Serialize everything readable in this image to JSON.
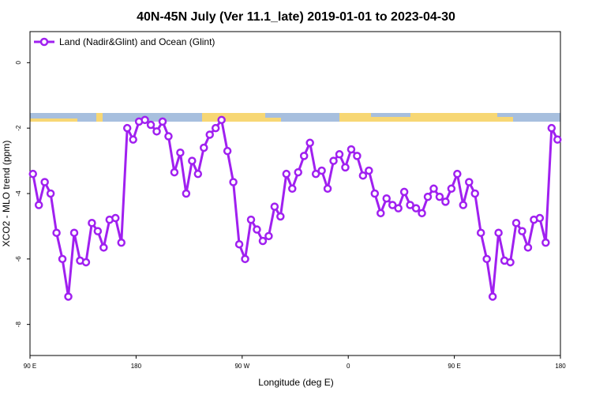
{
  "chart_data": {
    "type": "line",
    "title": "40N-45N July (Ver 11.1_late)   2019-01-01 to 2023-04-30",
    "x_label": "Longitude (deg E)",
    "y_label": "XCO2 - MLO trend (ppm)",
    "x": [
      92.5,
      97.5,
      102.5,
      107.5,
      112.5,
      117.5,
      122.5,
      127.5,
      132.5,
      137.5,
      142.5,
      147.5,
      152.5,
      157.5,
      162.5,
      167.5,
      172.5,
      177.5,
      182.5,
      187.5,
      192.5,
      197.5,
      202.5,
      207.5,
      212.5,
      217.5,
      222.5,
      227.5,
      232.5,
      237.5,
      242.5,
      247.5,
      252.5,
      257.5,
      262.5,
      267.5,
      272.5,
      277.5,
      282.5,
      287.5,
      292.5,
      297.5,
      302.5,
      307.5,
      312.5,
      317.5,
      322.5,
      327.5,
      332.5,
      337.5,
      342.5,
      347.5,
      352.5,
      357.5,
      362.5,
      367.5,
      372.5,
      377.5,
      382.5,
      387.5,
      392.5,
      397.5,
      402.5,
      407.5,
      412.5,
      417.5,
      422.5,
      427.5,
      432.5,
      437.5,
      442.5,
      447.5,
      452.5,
      457.5,
      462.5,
      467.5,
      472.5,
      477.5,
      482.5,
      487.5,
      492.5,
      497.5,
      502.5,
      507.5,
      512.5,
      517.5,
      522.5,
      527.5,
      532.5,
      537.5
    ],
    "series": [
      {
        "name": "Land (Nadir&Glint) and Ocean (Glint)",
        "color": "#a020f0",
        "values": [
          -3.4,
          -4.35,
          -3.65,
          -4.0,
          -5.2,
          -6.0,
          -7.15,
          -5.2,
          -6.05,
          -6.1,
          -4.9,
          -5.15,
          -5.65,
          -4.8,
          -4.75,
          -5.5,
          -2.0,
          -2.35,
          -1.8,
          -1.75,
          -1.9,
          -2.1,
          -1.8,
          -2.25,
          -3.35,
          -2.75,
          -4.0,
          -3.0,
          -3.4,
          -2.6,
          -2.2,
          -2.0,
          -1.75,
          -2.7,
          -3.65,
          -5.55,
          -6.0,
          -4.8,
          -5.1,
          -5.45,
          -5.3,
          -4.4,
          -4.7,
          -3.4,
          -3.85,
          -3.35,
          -2.85,
          -2.45,
          -3.4,
          -3.3,
          -3.85,
          -3.0,
          -2.8,
          -3.2,
          -2.65,
          -2.85,
          -3.45,
          -3.3,
          -4.0,
          -4.6,
          -4.15,
          -4.35,
          -4.45,
          -3.95,
          -4.35,
          -4.45,
          -4.6,
          -4.1,
          -3.85,
          -4.1,
          -4.25,
          -3.85,
          -3.4,
          -4.35,
          -3.65,
          -4.0,
          -5.2,
          -6.0,
          -7.15,
          -5.2,
          -6.05,
          -6.1,
          -4.9,
          -5.15,
          -5.65,
          -4.8,
          -4.75,
          -5.5,
          -2.0,
          -2.35
        ]
      }
    ],
    "xlim": [
      90,
      540
    ],
    "xticks": [
      {
        "value": 90,
        "label": "90 E"
      },
      180,
      {
        "value": 270,
        "label": "90 W"
      },
      {
        "value": 360,
        "label": "0"
      },
      {
        "value": 450,
        "label": "90 E"
      },
      {
        "value": 540,
        "label": "180"
      }
    ],
    "ylim": [
      -8.95,
      0.95
    ],
    "yticks": [
      0,
      -2,
      -4,
      -6,
      -8
    ],
    "legend": "top-left"
  }
}
